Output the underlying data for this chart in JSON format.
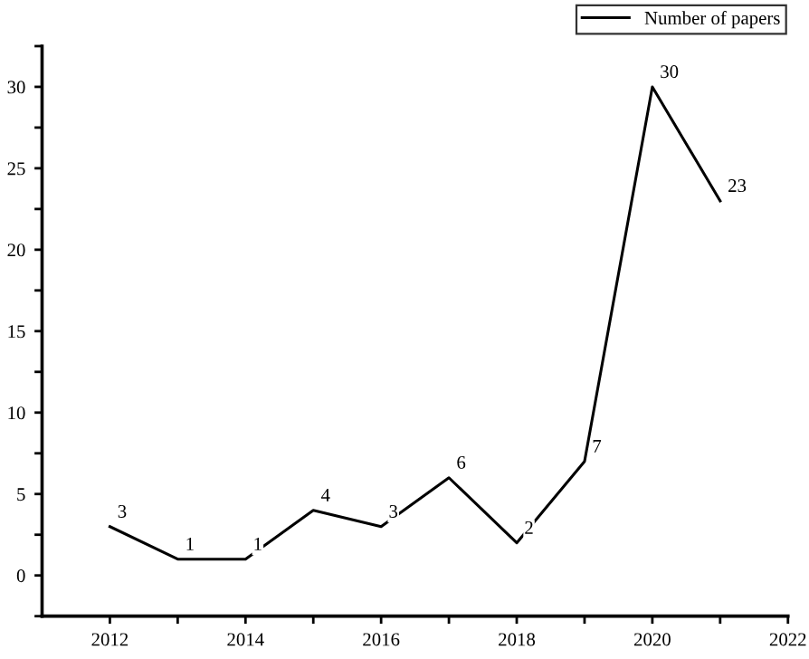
{
  "chart_data": {
    "type": "line",
    "x": [
      2012,
      2013,
      2014,
      2015,
      2016,
      2017,
      2018,
      2019,
      2020,
      2021
    ],
    "series": [
      {
        "name": "Number of papers",
        "color": "#000000",
        "values": [
          3,
          1,
          1,
          4,
          3,
          6,
          2,
          7,
          30,
          23
        ]
      }
    ],
    "data_labels": true,
    "xlim": [
      2011,
      2022
    ],
    "ylim": [
      -2.5,
      32.5
    ],
    "xticks": [
      2012,
      {
        "value": 2013,
        "label": null
      },
      2014,
      {
        "value": 2015,
        "label": null
      },
      2016,
      {
        "value": 2017,
        "label": null
      },
      2018,
      {
        "value": 2019,
        "label": null
      },
      2020,
      {
        "value": 2021,
        "label": null
      },
      2022
    ],
    "yticks": [
      {
        "value": -2.5,
        "label": null
      },
      0,
      {
        "value": 2.5,
        "label": null
      },
      5,
      {
        "value": 7.5,
        "label": null
      },
      10,
      {
        "value": 12.5,
        "label": null
      },
      15,
      {
        "value": 17.5,
        "label": null
      },
      20,
      {
        "value": 22.5,
        "label": null
      },
      25,
      {
        "value": 27.5,
        "label": null
      },
      30,
      {
        "value": 32.5,
        "label": null
      }
    ],
    "grid": false,
    "legend": "top right",
    "marker": "none",
    "line_style": "solid"
  }
}
